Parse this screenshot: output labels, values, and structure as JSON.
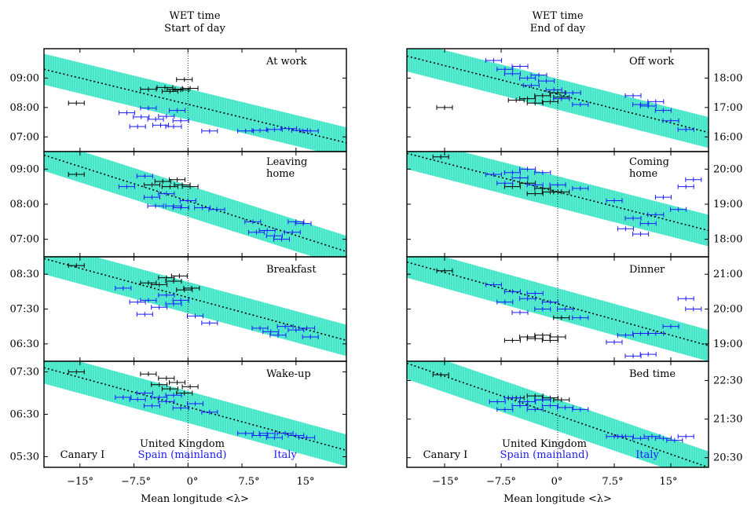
{
  "figure": {
    "col_titles": [
      {
        "line1": "WET time",
        "line2": "Start of day"
      },
      {
        "line1": "WET time",
        "line2": "End of day"
      }
    ],
    "xlabel": "Mean longitude <λ>",
    "xticks": [
      -15,
      -7.5,
      0,
      7.5,
      15
    ],
    "xtick_labels": [
      "−15°",
      "−7.5°",
      "0°",
      "7.5°",
      "15°"
    ],
    "legend": {
      "canary": "Canary I",
      "uk": "United Kingdom",
      "spain": "Spain (mainland)",
      "italy": "Italy"
    },
    "colors": {
      "band": "#3de0c0",
      "uk_and_canary": "#000000",
      "continent": "#1a1aff"
    }
  },
  "chart_data": [
    {
      "type": "scatter",
      "column": 0,
      "row": 0,
      "title": "At work",
      "xlim": [
        -20,
        22
      ],
      "ylim": [
        6.5,
        10.0
      ],
      "yticks": [
        7,
        8,
        9
      ],
      "ytick_labels": [
        "07:00",
        "08:00",
        "09:00"
      ],
      "fit": [
        [
          -20,
          9.3
        ],
        [
          22,
          6.8
        ]
      ],
      "series": [
        {
          "color": "black",
          "points": [
            [
              -15.5,
              8.15
            ],
            [
              -5.5,
              8.62
            ],
            [
              -3.2,
              8.68
            ],
            [
              -2.5,
              8.55
            ],
            [
              -1.8,
              8.62
            ],
            [
              -0.5,
              8.95
            ],
            [
              -1,
              8.6
            ],
            [
              0.3,
              8.65
            ]
          ]
        },
        {
          "color": "blue",
          "points": [
            [
              -8.5,
              7.82
            ],
            [
              -7,
              7.35
            ],
            [
              -6.5,
              7.68
            ],
            [
              -5.5,
              7.98
            ],
            [
              -4.5,
              7.6
            ],
            [
              -3.8,
              7.4
            ],
            [
              -3,
              7.7
            ],
            [
              -2,
              7.35
            ],
            [
              -1.5,
              7.9
            ],
            [
              -1,
              7.55
            ],
            [
              3,
              7.2
            ],
            [
              8,
              7.2
            ],
            [
              10,
              7.22
            ],
            [
              12,
              7.25
            ],
            [
              14,
              7.28
            ],
            [
              15.5,
              7.22
            ],
            [
              17,
              7.2
            ]
          ]
        }
      ]
    },
    {
      "type": "scatter",
      "column": 0,
      "row": 1,
      "title": "Leaving home",
      "xlim": [
        -20,
        22
      ],
      "ylim": [
        6.5,
        9.5
      ],
      "yticks": [
        7,
        8,
        9
      ],
      "ytick_labels": [
        "07:00",
        "08:00",
        "09:00"
      ],
      "fit": [
        [
          -20,
          9.4
        ],
        [
          22,
          6.65
        ]
      ],
      "series": [
        {
          "color": "black",
          "points": [
            [
              -15.5,
              8.85
            ],
            [
              -5,
              8.55
            ],
            [
              -3.5,
              8.65
            ],
            [
              -2.5,
              8.5
            ],
            [
              -1.5,
              8.7
            ],
            [
              -0.8,
              8.55
            ],
            [
              0.3,
              8.5
            ]
          ]
        },
        {
          "color": "blue",
          "points": [
            [
              -8.5,
              8.5
            ],
            [
              -6,
              8.8
            ],
            [
              -5,
              8.2
            ],
            [
              -4.5,
              7.95
            ],
            [
              -3,
              8.3
            ],
            [
              -2,
              7.95
            ],
            [
              -1,
              7.9
            ],
            [
              0,
              8.1
            ],
            [
              2,
              7.9
            ],
            [
              4,
              7.85
            ],
            [
              9,
              7.5
            ],
            [
              9.5,
              7.2
            ],
            [
              11,
              7.25
            ],
            [
              12,
              7.1
            ],
            [
              13,
              7.0
            ],
            [
              14.5,
              7.2
            ],
            [
              15,
              7.5
            ],
            [
              16,
              7.45
            ]
          ]
        }
      ]
    },
    {
      "type": "scatter",
      "column": 0,
      "row": 2,
      "title": "Breakfast",
      "xlim": [
        -20,
        22
      ],
      "ylim": [
        6.0,
        9.0
      ],
      "yticks": [
        6.5,
        7.5,
        8.5
      ],
      "ytick_labels": [
        "06:30",
        "07:30",
        "08:30"
      ],
      "fit": [
        [
          -20,
          8.95
        ],
        [
          22,
          6.6
        ]
      ],
      "series": [
        {
          "color": "black",
          "points": [
            [
              -15.5,
              8.75
            ],
            [
              -5.5,
              8.25
            ],
            [
              -4,
              8.2
            ],
            [
              -3,
              8.4
            ],
            [
              -2,
              8.3
            ],
            [
              -1.2,
              8.45
            ],
            [
              -0.5,
              8.05
            ],
            [
              0.5,
              8.1
            ]
          ]
        },
        {
          "color": "blue",
          "points": [
            [
              -9,
              8.1
            ],
            [
              -7,
              7.7
            ],
            [
              -6,
              7.35
            ],
            [
              -5.5,
              7.75
            ],
            [
              -4,
              7.55
            ],
            [
              -3,
              7.9
            ],
            [
              -2,
              7.65
            ],
            [
              -1,
              7.75
            ],
            [
              1,
              7.3
            ],
            [
              3,
              7.1
            ],
            [
              10,
              6.95
            ],
            [
              11.5,
              6.85
            ],
            [
              12.5,
              6.75
            ],
            [
              13.5,
              7.0
            ],
            [
              15,
              6.9
            ],
            [
              16.5,
              6.95
            ],
            [
              17,
              6.7
            ]
          ]
        }
      ]
    },
    {
      "type": "scatter",
      "column": 0,
      "row": 3,
      "title": "Wake-up",
      "xlim": [
        -20,
        22
      ],
      "ylim": [
        5.25,
        7.75
      ],
      "yticks": [
        5.5,
        6.5,
        7.5
      ],
      "ytick_labels": [
        "05:30",
        "06:30",
        "07:30"
      ],
      "fit": [
        [
          -20,
          7.6
        ],
        [
          22,
          5.65
        ]
      ],
      "series": [
        {
          "color": "black",
          "points": [
            [
              -15.5,
              7.5
            ],
            [
              -5.5,
              7.45
            ],
            [
              -4,
              7.2
            ],
            [
              -3,
              7.35
            ],
            [
              -2.5,
              7.1
            ],
            [
              -1.5,
              7.25
            ],
            [
              -0.5,
              7.0
            ],
            [
              0.3,
              7.15
            ]
          ]
        },
        {
          "color": "blue",
          "points": [
            [
              -9,
              6.9
            ],
            [
              -7,
              6.85
            ],
            [
              -6,
              7.0
            ],
            [
              -5,
              6.7
            ],
            [
              -4,
              6.9
            ],
            [
              -3,
              6.8
            ],
            [
              -2,
              6.95
            ],
            [
              -1,
              6.65
            ],
            [
              1,
              6.75
            ],
            [
              3,
              6.55
            ],
            [
              8,
              6.05
            ],
            [
              10,
              6.0
            ],
            [
              11,
              6.05
            ],
            [
              12,
              5.95
            ],
            [
              13.5,
              6.05
            ],
            [
              15,
              6.0
            ],
            [
              16.5,
              5.95
            ]
          ]
        }
      ]
    },
    {
      "type": "scatter",
      "column": 1,
      "row": 0,
      "title": "Off work",
      "xlim": [
        -20,
        20
      ],
      "ylim": [
        15.5,
        19.0
      ],
      "yticks": [
        16,
        17,
        18
      ],
      "ytick_labels": [
        "16:00",
        "17:00",
        "18:00"
      ],
      "fit": [
        [
          -20,
          18.75
        ],
        [
          20,
          16.15
        ]
      ],
      "series": [
        {
          "color": "black",
          "points": [
            [
              -15,
              17.0
            ],
            [
              -5.5,
              17.25
            ],
            [
              -4,
              17.3
            ],
            [
              -3,
              17.15
            ],
            [
              -2,
              17.4
            ],
            [
              -1,
              17.2
            ],
            [
              0,
              17.5
            ],
            [
              0.5,
              17.35
            ]
          ]
        },
        {
          "color": "blue",
          "points": [
            [
              -8.5,
              18.6
            ],
            [
              -7,
              18.3
            ],
            [
              -6,
              18.15
            ],
            [
              -5,
              18.4
            ],
            [
              -4,
              18.0
            ],
            [
              -3.5,
              17.75
            ],
            [
              -2.5,
              18.1
            ],
            [
              -1.5,
              17.9
            ],
            [
              -0.5,
              17.6
            ],
            [
              0.5,
              17.3
            ],
            [
              2,
              17.5
            ],
            [
              3,
              17.1
            ],
            [
              10,
              17.4
            ],
            [
              11,
              17.1
            ],
            [
              12,
              17.05
            ],
            [
              13,
              17.2
            ],
            [
              14,
              16.9
            ],
            [
              15,
              16.55
            ],
            [
              17,
              16.25
            ]
          ]
        }
      ]
    },
    {
      "type": "scatter",
      "column": 1,
      "row": 1,
      "title": "Coming home",
      "xlim": [
        -20,
        20
      ],
      "ylim": [
        17.5,
        20.5
      ],
      "yticks": [
        18,
        19,
        20
      ],
      "ytick_labels": [
        "18:00",
        "19:00",
        "20:00"
      ],
      "fit": [
        [
          -20,
          20.45
        ],
        [
          20,
          18.25
        ]
      ],
      "series": [
        {
          "color": "black",
          "points": [
            [
              -15.5,
              20.35
            ],
            [
              -6,
              19.5
            ],
            [
              -4,
              19.6
            ],
            [
              -3,
              19.3
            ],
            [
              -2,
              19.45
            ],
            [
              -1,
              19.35
            ],
            [
              0.5,
              19.35
            ]
          ]
        },
        {
          "color": "blue",
          "points": [
            [
              -8.5,
              19.85
            ],
            [
              -7,
              19.6
            ],
            [
              -6,
              19.9
            ],
            [
              -5,
              19.75
            ],
            [
              -4,
              20.0
            ],
            [
              -3,
              19.55
            ],
            [
              -2,
              19.9
            ],
            [
              0,
              19.55
            ],
            [
              3,
              19.45
            ],
            [
              7.5,
              19.1
            ],
            [
              9,
              18.3
            ],
            [
              10,
              18.6
            ],
            [
              11,
              18.15
            ],
            [
              12,
              18.45
            ],
            [
              13,
              18.7
            ],
            [
              14,
              19.2
            ],
            [
              16,
              18.85
            ],
            [
              17,
              19.5
            ],
            [
              18,
              19.7
            ]
          ]
        }
      ]
    },
    {
      "type": "scatter",
      "column": 1,
      "row": 2,
      "title": "Dinner",
      "xlim": [
        -20,
        20
      ],
      "ylim": [
        18.5,
        21.5
      ],
      "yticks": [
        19,
        20,
        21
      ],
      "ytick_labels": [
        "19:00",
        "20:00",
        "21:00"
      ],
      "fit": [
        [
          -20,
          21.35
        ],
        [
          20,
          18.95
        ]
      ],
      "series": [
        {
          "color": "black",
          "points": [
            [
              -15,
              21.1
            ],
            [
              -6,
              19.1
            ],
            [
              -4,
              19.2
            ],
            [
              -3,
              19.15
            ],
            [
              -2,
              19.25
            ],
            [
              -1,
              19.1
            ],
            [
              0,
              19.2
            ],
            [
              0.5,
              19.75
            ]
          ]
        },
        {
          "color": "blue",
          "points": [
            [
              -8.5,
              20.7
            ],
            [
              -7,
              20.2
            ],
            [
              -6,
              20.5
            ],
            [
              -5,
              19.9
            ],
            [
              -4,
              20.3
            ],
            [
              -3,
              20.45
            ],
            [
              -2,
              20.0
            ],
            [
              -1,
              20.2
            ],
            [
              1,
              20.0
            ],
            [
              3,
              19.75
            ],
            [
              7.5,
              19.05
            ],
            [
              9,
              19.25
            ],
            [
              10,
              18.65
            ],
            [
              11,
              19.3
            ],
            [
              12,
              18.7
            ],
            [
              13,
              19.3
            ],
            [
              15,
              19.5
            ],
            [
              17,
              20.3
            ],
            [
              18,
              20.0
            ]
          ]
        }
      ]
    },
    {
      "type": "scatter",
      "column": 1,
      "row": 3,
      "title": "Bed time",
      "xlim": [
        -20,
        20
      ],
      "ylim": [
        20.25,
        23.0
      ],
      "yticks": [
        20.5,
        21.5,
        22.5
      ],
      "ytick_labels": [
        "20:30",
        "21:30",
        "22:30"
      ],
      "fit": [
        [
          -20,
          22.95
        ],
        [
          20,
          20.25
        ]
      ],
      "series": [
        {
          "color": "black",
          "points": [
            [
              -15.5,
              22.65
            ],
            [
              -5.5,
              22.05
            ],
            [
              -4,
              21.95
            ],
            [
              -3,
              22.1
            ],
            [
              -2,
              22.0
            ],
            [
              -1,
              22.05
            ],
            [
              0.5,
              22.0
            ]
          ]
        },
        {
          "color": "blue",
          "points": [
            [
              -8,
              21.95
            ],
            [
              -7,
              21.75
            ],
            [
              -6,
              22.05
            ],
            [
              -5,
              21.85
            ],
            [
              -4,
              21.95
            ],
            [
              -3,
              21.75
            ],
            [
              -2,
              22.0
            ],
            [
              -1,
              21.85
            ],
            [
              1,
              21.8
            ],
            [
              3,
              21.75
            ],
            [
              7.5,
              21.05
            ],
            [
              9,
              21.05
            ],
            [
              11,
              21.0
            ],
            [
              12.5,
              21.05
            ],
            [
              14,
              21.0
            ],
            [
              15.5,
              20.95
            ],
            [
              17,
              21.05
            ]
          ]
        }
      ]
    }
  ]
}
